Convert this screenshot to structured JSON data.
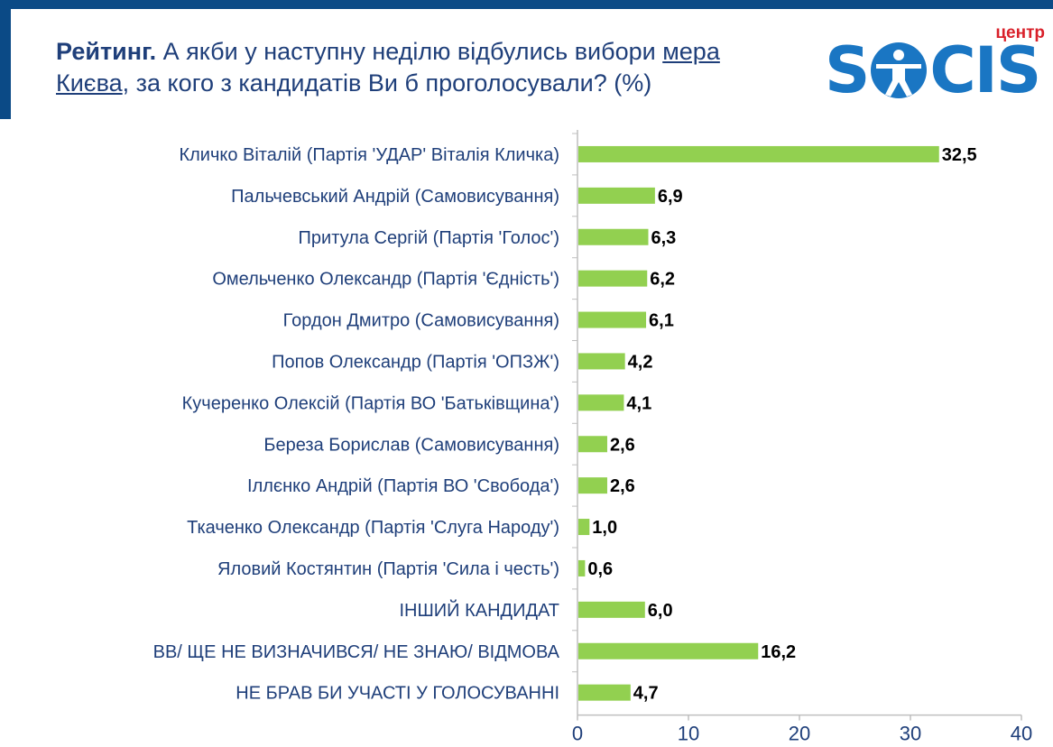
{
  "header": {
    "title_bold": "Рейтинг.",
    "title_part1": " А якби у наступну неділю відбулись вибори ",
    "title_underline1": "мера",
    "title_underline2": "Києва",
    "title_part2": ", за кого з кандидатів Ви б проголосували? (%)"
  },
  "logo": {
    "small_text": "центр",
    "letter_s": "S",
    "letters_cis": "CIS",
    "brand_color": "#1a76c3",
    "accent_color": "#d9202a"
  },
  "colors": {
    "bar": "#92d050",
    "label": "#1f3f7a",
    "axis": "#bfbfbf",
    "value": "#000000"
  },
  "chart_data": {
    "type": "bar",
    "orientation": "horizontal",
    "title": "Рейтинг. А якби у наступну неділю відбулись вибори мера Києва, за кого з кандидатів Ви б проголосували? (%)",
    "categories": [
      "Кличко Віталій (Партія 'УДАР' Віталія Кличка)",
      "Пальчевський Андрій (Самовисування)",
      "Притула Сергій (Партія 'Голос')",
      "Омельченко Олександр (Партія 'Єдність')",
      "Гордон Дмитро (Самовисування)",
      "Попов Олександр (Партія 'ОПЗЖ')",
      "Кучеренко Олексій (Партія ВО 'Батьківщина')",
      "Береза Борислав (Самовисування)",
      "Іллєнко Андрій (Партія ВО 'Свобода')",
      "Ткаченко Олександр (Партія 'Слуга Народу')",
      "Яловий Костянтин (Партія 'Сила і честь')",
      "ІНШИЙ КАНДИДАТ",
      "ВВ/ ЩЕ НЕ ВИЗНАЧИВСЯ/ НЕ ЗНАЮ/ ВІДМОВА",
      "НЕ БРАВ БИ УЧАСТІ У ГОЛОСУВАННІ"
    ],
    "values": [
      32.5,
      6.9,
      6.3,
      6.2,
      6.1,
      4.2,
      4.1,
      2.6,
      2.6,
      1.0,
      0.6,
      6.0,
      16.2,
      4.7
    ],
    "value_labels": [
      "32,5",
      "6,9",
      "6,3",
      "6,2",
      "6,1",
      "4,2",
      "4,1",
      "2,6",
      "2,6",
      "1,0",
      "0,6",
      "6,0",
      "16,2",
      "4,7"
    ],
    "xlim": [
      0,
      40
    ],
    "xticks": [
      0,
      10,
      20,
      30,
      40
    ],
    "xtick_labels": [
      "0",
      "10",
      "20",
      "30",
      "40"
    ],
    "xlabel": "",
    "ylabel": "",
    "grid": false,
    "legend": "none"
  }
}
